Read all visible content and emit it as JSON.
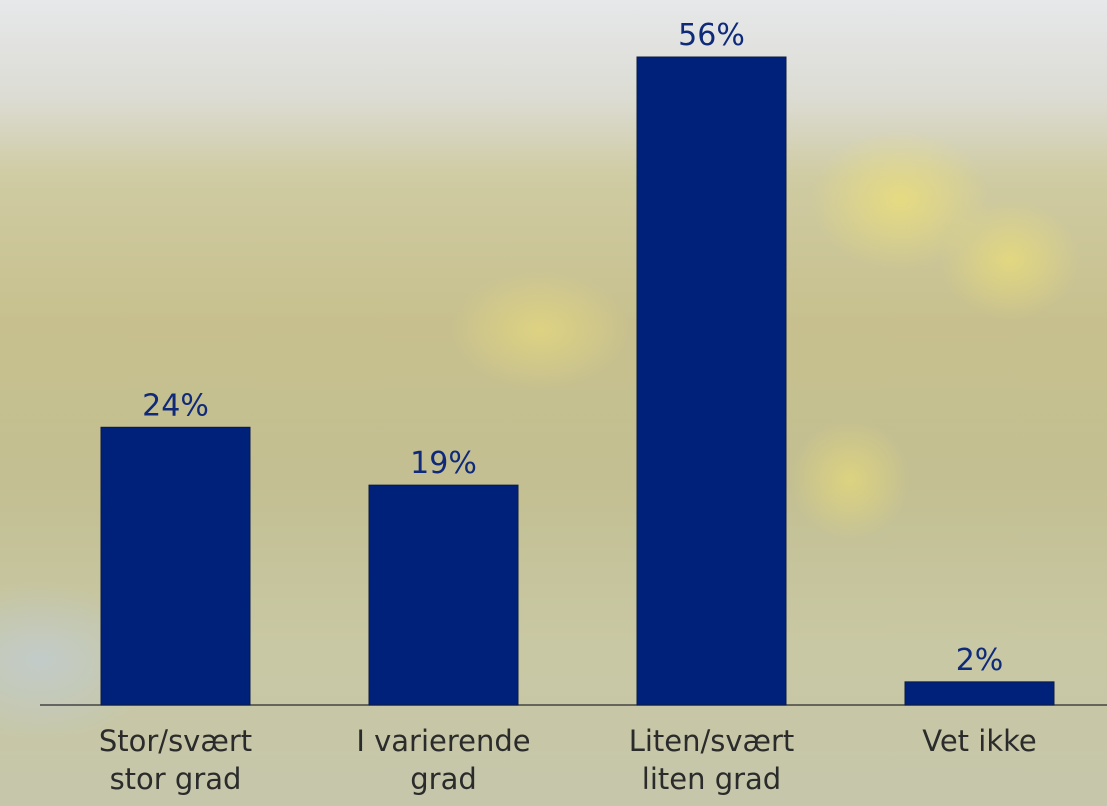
{
  "chart_data": {
    "type": "bar",
    "categories": [
      "Stor/svært stor grad",
      "I varierende grad",
      "Liten/svært liten grad",
      "Vet ikke"
    ],
    "values": [
      24,
      19,
      56,
      2
    ],
    "value_labels": [
      "24%",
      "19%",
      "56%",
      "2%"
    ],
    "color": "#00217a"
  }
}
